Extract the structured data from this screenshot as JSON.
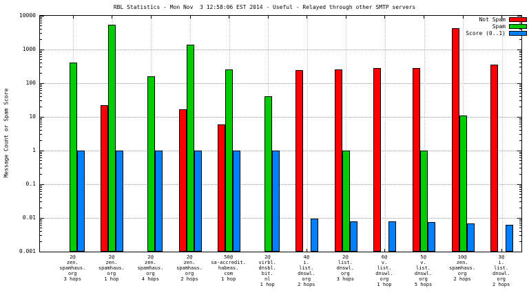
{
  "title": "RBL Statistics - Mon Nov  3 12:58:06 EST 2014 - Useful - Relayed through other SMTP servers",
  "chart_data": {
    "type": "bar",
    "y_scale": "log",
    "ylim": [
      0.001,
      10000
    ],
    "ylabel": "Message Count or Spam Score",
    "yticks": [
      "0.001",
      "0.01",
      "0.1",
      "1",
      "10",
      "100",
      "1000",
      "10000"
    ],
    "grid": true,
    "legend_position": "top-right",
    "categories": [
      [
        "2@",
        "zen.",
        "spamhaus.",
        "org",
        "3 hops"
      ],
      [
        "2@",
        "zen.",
        "spamhaus.",
        "org",
        "1 hop"
      ],
      [
        "2@",
        "zen.",
        "spamhaus.",
        "org",
        "4 hops"
      ],
      [
        "2@",
        "zen.",
        "spamhaus.",
        "org",
        "2 hops"
      ],
      [
        "50@",
        "sa-accredit.",
        "habeas.",
        "com",
        "1 hop"
      ],
      [
        "2@",
        "virbl.",
        "dnsbl.",
        "bit.",
        "nl",
        "1 hop"
      ],
      [
        "4@",
        "i.",
        "list.",
        "dnswl.",
        "org",
        "2 hops"
      ],
      [
        "2@",
        "list.",
        "dnswl.",
        "org",
        "3 hops"
      ],
      [
        "6@",
        "v.",
        "list.",
        "dnswl.",
        "org",
        "1 hop"
      ],
      [
        "5@",
        "v.",
        "list.",
        "dnswl.",
        "org",
        "5 hops"
      ],
      [
        "10@",
        "zen.",
        "spamhaus.",
        "org",
        "2 hops"
      ],
      [
        "3@",
        "i.",
        "list.",
        "dnswl.",
        "org",
        "2 hops"
      ]
    ],
    "series": [
      {
        "name": "Not Spam",
        "color": "#ff0000",
        "values": [
          null,
          22,
          null,
          17,
          6,
          null,
          245,
          260,
          275,
          285,
          4200,
          360
        ]
      },
      {
        "name": "Spam",
        "color": "#00cc00",
        "values": [
          400,
          5500,
          160,
          1400,
          260,
          40,
          null,
          1,
          null,
          1,
          11,
          null
        ]
      },
      {
        "name": "Score (0..1)",
        "color": "#0080ff",
        "values": [
          1,
          1,
          1,
          1,
          1,
          1,
          0.0095,
          0.008,
          0.008,
          0.0077,
          0.0069,
          0.0063
        ]
      }
    ]
  }
}
